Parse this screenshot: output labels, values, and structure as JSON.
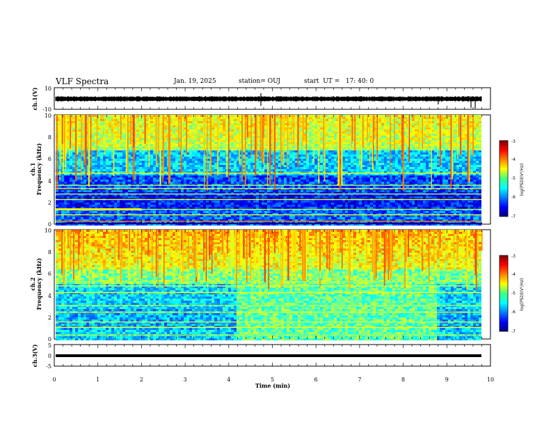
{
  "header": {
    "title": "VLF Spectra",
    "date": "Jan. 19, 2025",
    "station": "station= OUJ",
    "start": "start  UT =   17: 40: 0"
  },
  "chart_data": [
    {
      "type": "line",
      "ylabel": "ch.1(V)",
      "ylim": [
        -10,
        10
      ],
      "yticks": [
        "10",
        "-10"
      ],
      "xlim": [
        0,
        10
      ]
    },
    {
      "type": "heatmap",
      "ylabel_line1": "ch.1",
      "ylabel_line2": "Frequency (kHz)",
      "ylim": [
        0,
        10
      ],
      "yticks": [
        "0",
        "2",
        "4",
        "6",
        "8",
        "10"
      ],
      "colorbar": {
        "label": "log(PSD)(V²/Hz)",
        "ticks": [
          "-3",
          "-4",
          "-5",
          "-6",
          "-7"
        ],
        "range": [
          -7,
          -3
        ]
      }
    },
    {
      "type": "heatmap",
      "ylabel_line1": "ch.2",
      "ylabel_line2": "Frequency (kHz)",
      "ylim": [
        0,
        10
      ],
      "yticks": [
        "0",
        "2",
        "4",
        "6",
        "8",
        "10"
      ],
      "colorbar": {
        "label": "log(PSD)(V²/Hz)",
        "ticks": [
          "-3",
          "-4",
          "-5",
          "-6",
          "-7"
        ],
        "range": [
          -7,
          -3
        ]
      }
    },
    {
      "type": "line",
      "ylabel": "ch.3(V)",
      "ylim": [
        -5,
        5
      ],
      "yticks": [
        "5",
        "0",
        "-5"
      ],
      "xlim": [
        0,
        10
      ],
      "xlabel": "Time (min)",
      "xticks": [
        "0",
        "1",
        "2",
        "3",
        "4",
        "5",
        "6",
        "7",
        "8",
        "9",
        "10"
      ]
    }
  ],
  "colors": {
    "jet_low": "#00007f",
    "jet_mid": "#00ff80",
    "jet_high": "#800000"
  }
}
